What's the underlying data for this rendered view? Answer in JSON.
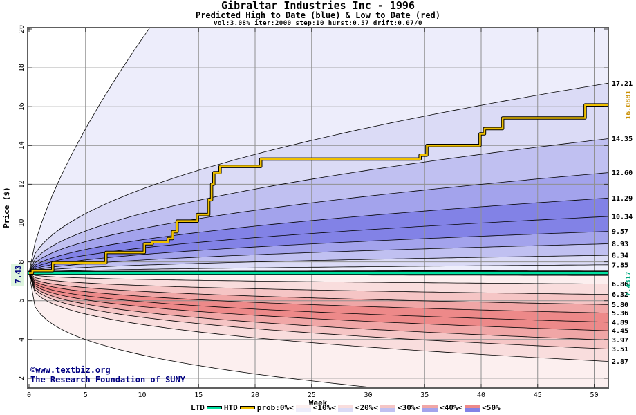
{
  "header": {
    "title": "Gibraltar Industries Inc - 1996",
    "subtitle": "Predicted High to Date (blue) &  Low to Date (red)",
    "params": "vol:3.08% iter:2000 step:10 hurst:0.57 drift:0.07/0"
  },
  "watermark": {
    "line1": "©www.textbiz.org",
    "line2": "The Research Foundation of SUNY"
  },
  "legend": {
    "ltd_label": "LTD",
    "htd_label": "HTD",
    "prob_labels": [
      "prob:0%<",
      "<10%<",
      "<20%<",
      "<30%<",
      "<40%<",
      "<50%"
    ]
  },
  "chart_data": {
    "type": "area",
    "title": "Gibraltar Industries Inc - 1996",
    "subtitle": "Predicted High to Date (blue) &  Low to Date (red)",
    "params": "vol:3.08% iter:2000 step:10 hurst:0.57 drift:0.07/0",
    "xlabel": "Week",
    "ylabel": "Price ($)",
    "xlim": [
      0,
      51.25
    ],
    "ylim": [
      1.5,
      20
    ],
    "x_ticks": [
      0,
      5,
      10,
      15,
      20,
      25,
      30,
      35,
      40,
      45,
      50
    ],
    "y_ticks": [
      2,
      4,
      6,
      8,
      10,
      12,
      14,
      16,
      18,
      20
    ],
    "start_price": 7.43,
    "start_price_label": "7.43",
    "htd_boundaries": [
      {
        "q": "0%",
        "end": 7.57
      },
      {
        "q": "10%",
        "end": 7.85,
        "label": "7.85"
      },
      {
        "q": "20%",
        "end": 8.34,
        "label": "8.34"
      },
      {
        "q": "30%",
        "end": 8.93,
        "label": "8.93"
      },
      {
        "q": "40%",
        "end": 9.57,
        "label": "9.57"
      },
      {
        "q": "50%",
        "end": 10.34,
        "label": "10.34"
      },
      {
        "q": "60%",
        "end": 11.29,
        "label": "11.29"
      },
      {
        "q": "70%",
        "end": 12.6,
        "label": "12.60"
      },
      {
        "q": "80%",
        "end": 14.35,
        "label": "14.35"
      },
      {
        "q": "90%",
        "end": 17.21,
        "label": "17.21"
      }
    ],
    "ltd_boundaries": [
      {
        "q": "0%",
        "end": 7.3
      },
      {
        "q": "10%",
        "end": 6.86,
        "label": "6.86"
      },
      {
        "q": "20%",
        "end": 6.32,
        "label": "6.32"
      },
      {
        "q": "30%",
        "end": 5.8,
        "label": "5.80"
      },
      {
        "q": "40%",
        "end": 5.36,
        "label": "5.36"
      },
      {
        "q": "50%",
        "end": 4.89,
        "label": "4.89"
      },
      {
        "q": "60%",
        "end": 4.45,
        "label": "4.45"
      },
      {
        "q": "70%",
        "end": 3.97,
        "label": "3.97"
      },
      {
        "q": "80%",
        "end": 3.51,
        "label": "3.51"
      },
      {
        "q": "90%",
        "end": 2.87,
        "label": "2.87"
      }
    ],
    "top_envelope": {
      "q": "100%",
      "exit_week": 10.6,
      "exp": 0.7,
      "delta": 12.57
    },
    "bottom_envelope": {
      "q": "100%",
      "ref_week": 23,
      "exp": 0.3,
      "delta": 5.43
    },
    "curve_exp": {
      "blue": 0.5,
      "red": 0.33
    },
    "htd_steps": [
      [
        0,
        7.43
      ],
      [
        0.3,
        7.55
      ],
      [
        2.1,
        7.95
      ],
      [
        6.8,
        8.48
      ],
      [
        10.2,
        8.93
      ],
      [
        10.9,
        9.03
      ],
      [
        12.3,
        9.2
      ],
      [
        12.7,
        9.55
      ],
      [
        13.1,
        10.1
      ],
      [
        14.9,
        10.44
      ],
      [
        15.9,
        11.2
      ],
      [
        16.15,
        12.0
      ],
      [
        16.35,
        12.6
      ],
      [
        16.9,
        12.92
      ],
      [
        20.5,
        13.3
      ],
      [
        34.6,
        13.5
      ],
      [
        35.2,
        14.0
      ],
      [
        39.9,
        14.6
      ],
      [
        40.3,
        14.87
      ],
      [
        41.9,
        15.42
      ],
      [
        49.2,
        16.088
      ]
    ],
    "htd_final": 16.0881,
    "htd_final_label": "16.0881",
    "ltd_line": {
      "start": 7.43,
      "end": 7.4317,
      "label": "7.4317"
    },
    "band_probabilities": [
      "0-10%",
      "10-20%",
      "20-30%",
      "30-40%",
      "40-50%"
    ],
    "colors": {
      "blue_shades": [
        "#EDEDFB",
        "#DBDBF6",
        "#C0C0F1",
        "#A3A3EC",
        "#8282E6"
      ],
      "red_shades": [
        "#FCEFEF",
        "#F9DDDD",
        "#F5C5C5",
        "#F0A6A6",
        "#ED8989"
      ],
      "ltd": "#00E0A0",
      "htd": "#EFC000",
      "htd_label": "#C98E00",
      "ltd_label": "#00A87E",
      "navy": "#000080",
      "grid": "#909090",
      "border": "#606060",
      "start_label_bg": "#DEF5DE"
    }
  }
}
